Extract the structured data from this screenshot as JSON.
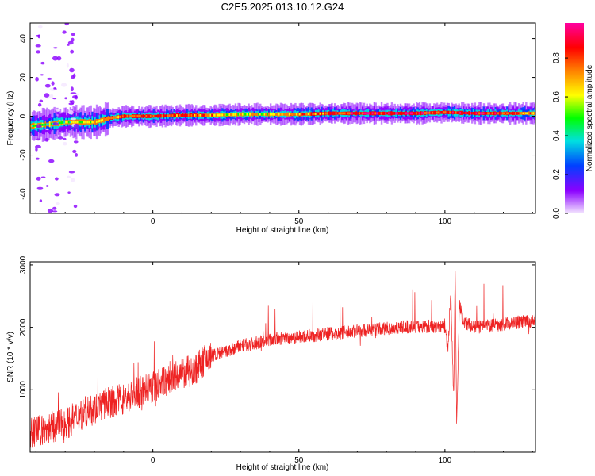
{
  "title": "C2E5.2025.013.10.12.G24",
  "chart_data": [
    {
      "id": "spectrogram",
      "type": "heatmap",
      "xlabel": "Height of straight line (km)",
      "ylabel": "Frequency (Hz)",
      "xlim": [
        -42,
        131
      ],
      "ylim": [
        -50,
        48
      ],
      "x_ticks": [
        "0",
        "50",
        "100"
      ],
      "y_ticks": [
        "40",
        "20",
        "0",
        "-20",
        "-40"
      ],
      "colorbar": {
        "label": "Normalized spectral amplitude",
        "ticks": [
          "0.0",
          "0.2",
          "0.4",
          "0.6",
          "0.8"
        ],
        "colors": [
          "#f4e6ff",
          "#8b00ff",
          "#0040ff",
          "#00e0e0",
          "#00ff00",
          "#ffff00",
          "#ff8000",
          "#ff0000",
          "#ff00a0"
        ]
      },
      "ridge": {
        "x": [
          -42,
          -35,
          -30,
          -25,
          -20,
          -15,
          -10,
          -5,
          0,
          10,
          20,
          30,
          40,
          50,
          60,
          70,
          80,
          90,
          100,
          110,
          120,
          131
        ],
        "frequency_hz": [
          -5,
          -4,
          -3,
          -3,
          -3,
          -1,
          0,
          0,
          0,
          0.5,
          0.5,
          1,
          1,
          1,
          1.5,
          1.5,
          1.5,
          1.5,
          2,
          1.5,
          1.5,
          1.5
        ],
        "amplitude": [
          0.5,
          0.45,
          0.5,
          0.6,
          0.65,
          0.75,
          0.8,
          0.85,
          0.85,
          0.8,
          0.7,
          0.6,
          0.65,
          0.75,
          0.8,
          0.85,
          0.9,
          0.9,
          0.85,
          0.9,
          0.8,
          0.7
        ]
      }
    },
    {
      "id": "snr",
      "type": "line",
      "xlabel": "Height of straight line (km)",
      "ylabel": "SNR (10 * v/v)",
      "xlim": [
        -42,
        131
      ],
      "ylim": [
        0,
        3050
      ],
      "x_ticks": [
        "0",
        "50",
        "100"
      ],
      "y_ticks": [
        "1000",
        "2000",
        "3000"
      ],
      "color": "#ee2222",
      "series": [
        {
          "x": [
            -42,
            -35,
            -30,
            -25,
            -20,
            -15,
            -10,
            -5,
            0,
            5,
            10,
            15,
            20,
            25,
            30,
            35,
            40,
            45,
            50,
            55,
            60,
            65,
            70,
            75,
            80,
            85,
            90,
            95,
            100,
            101,
            102,
            103,
            103.5,
            104,
            105,
            106,
            110,
            115,
            120,
            125,
            131
          ],
          "values": [
            300,
            400,
            450,
            600,
            700,
            800,
            850,
            950,
            1050,
            1150,
            1250,
            1350,
            1550,
            1600,
            1700,
            1750,
            1800,
            1830,
            1850,
            1870,
            1900,
            1920,
            1950,
            1960,
            1980,
            2000,
            2010,
            2020,
            2000,
            1600,
            2600,
            800,
            3000,
            400,
            2400,
            2100,
            2000,
            2020,
            2050,
            2080,
            2100
          ]
        }
      ]
    }
  ]
}
